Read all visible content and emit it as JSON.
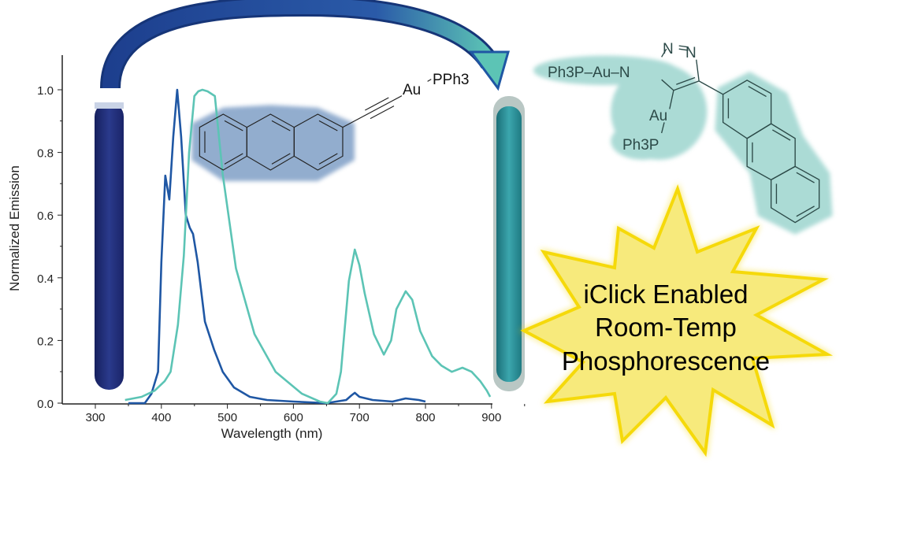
{
  "chart_data": {
    "type": "line",
    "title": "",
    "xlabel": "Wavelength (nm)",
    "ylabel": "Normalized Emission",
    "xlim": [
      250,
      900
    ],
    "ylim": [
      0,
      1.1
    ],
    "xticks": [
      "300",
      "400",
      "500",
      "600",
      "700",
      "800",
      "900"
    ],
    "yticks": [
      "0.0",
      "0.2",
      "0.4",
      "0.6",
      "0.8",
      "1.0"
    ],
    "grid": false,
    "series": [
      {
        "color": "#1f57a4",
        "x": [
          350,
          375,
          385,
          395,
          400,
          406,
          412,
          418,
          424,
          430,
          437,
          443,
          448,
          455,
          466,
          480,
          493,
          510,
          534,
          560,
          600,
          650,
          680,
          688,
          693,
          700,
          720,
          750,
          770,
          790,
          800
        ],
        "y": [
          0.0,
          0.0,
          0.03,
          0.1,
          0.45,
          0.726,
          0.65,
          0.85,
          1.0,
          0.85,
          0.6,
          0.56,
          0.54,
          0.45,
          0.26,
          0.17,
          0.1,
          0.05,
          0.02,
          0.01,
          0.005,
          0.0,
          0.01,
          0.025,
          0.033,
          0.02,
          0.01,
          0.005,
          0.015,
          0.01,
          0.005
        ]
      },
      {
        "color": "#5cc4b5",
        "x": [
          345,
          370,
          390,
          405,
          414,
          425,
          434,
          442,
          450,
          456,
          462,
          470,
          481,
          493,
          513,
          541,
          573,
          613,
          640,
          652,
          665,
          672,
          684,
          693,
          700,
          708,
          722,
          737,
          748,
          756,
          770,
          780,
          792,
          810,
          824,
          840,
          856,
          870,
          883,
          893,
          898
        ],
        "y": [
          0.01,
          0.02,
          0.04,
          0.07,
          0.1,
          0.25,
          0.47,
          0.8,
          0.98,
          0.995,
          1.0,
          0.995,
          0.98,
          0.73,
          0.43,
          0.22,
          0.1,
          0.03,
          0.005,
          0.0,
          0.03,
          0.1,
          0.39,
          0.49,
          0.44,
          0.35,
          0.22,
          0.155,
          0.2,
          0.3,
          0.357,
          0.33,
          0.23,
          0.15,
          0.12,
          0.1,
          0.113,
          0.1,
          0.07,
          0.04,
          0.02
        ]
      }
    ]
  },
  "left_molecule": {
    "metal": "Au",
    "ligand": "PPh3",
    "ligand_sub": "3"
  },
  "right_molecule": {
    "top_label": "Ph3P–Au–N",
    "n2": "N",
    "n3": "N",
    "au": "Au",
    "ph3p": "Ph3P"
  },
  "callout": {
    "lines": [
      "iClick Enabled",
      "Room-Temp",
      "Phosphorescence"
    ],
    "fill": "#f7ea7c",
    "stroke": "#f5d90a"
  },
  "colors": {
    "arrow_start": "#1d3f8e",
    "arrow_end": "#5cc4b5",
    "left_tube": "#1e2a78",
    "right_tube": "#2c8f96"
  }
}
